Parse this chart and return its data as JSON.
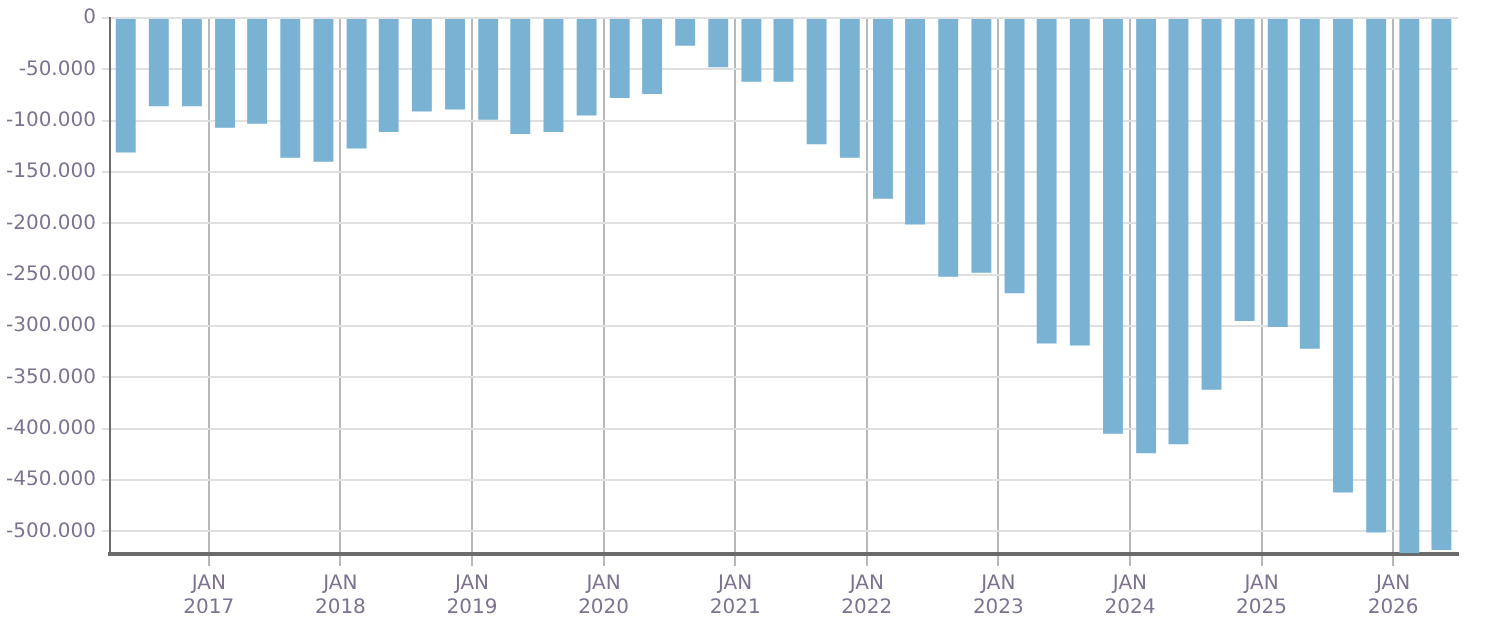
{
  "chart_data": {
    "type": "bar",
    "x": [
      "2016-05-15",
      "2016-08-15",
      "2016-11-15",
      "2017-02-15",
      "2017-05-15",
      "2017-08-15",
      "2017-11-15",
      "2018-02-15",
      "2018-05-15",
      "2018-08-15",
      "2018-11-15",
      "2019-02-15",
      "2019-05-15",
      "2019-08-15",
      "2019-11-15",
      "2020-02-15",
      "2020-05-15",
      "2020-08-15",
      "2020-11-15",
      "2021-02-15",
      "2021-05-15",
      "2021-08-15",
      "2021-11-15",
      "2022-02-15",
      "2022-05-15",
      "2022-08-15",
      "2022-11-15",
      "2023-02-15",
      "2023-05-15",
      "2023-08-15",
      "2023-11-15",
      "2024-02-15",
      "2024-05-15",
      "2024-08-15",
      "2024-11-15",
      "2025-02-15",
      "2025-05-15",
      "2025-08-15",
      "2025-11-15",
      "2026-02-15",
      "2026-05-15"
    ],
    "values": [
      -131000,
      -86000,
      -86000,
      -107000,
      -103000,
      -136000,
      -140000,
      -127000,
      -111000,
      -91000,
      -89000,
      -99000,
      -113000,
      -111000,
      -95000,
      -78000,
      -74000,
      -27000,
      -48000,
      -62000,
      -62000,
      -123000,
      -136000,
      -176000,
      -201000,
      -252000,
      -248000,
      -268000,
      -317000,
      -319000,
      -405000,
      -424000,
      -415000,
      -362000,
      -295000,
      -301000,
      -322000,
      -462000,
      -501000,
      -521000,
      -518000
    ],
    "color": "#7ab2d4",
    "xlim": [
      "2016-04-01",
      "2026-06-30"
    ],
    "xticks": [
      {
        "value": "2017-01-01",
        "label": "JAN 2017"
      },
      {
        "value": "2018-01-01",
        "label": "JAN 2018"
      },
      {
        "value": "2019-01-01",
        "label": "JAN 2019"
      },
      {
        "value": "2020-01-01",
        "label": "JAN 2020"
      },
      {
        "value": "2021-01-01",
        "label": "JAN 2021"
      },
      {
        "value": "2022-01-01",
        "label": "JAN 2022"
      },
      {
        "value": "2023-01-01",
        "label": "JAN 2023"
      },
      {
        "value": "2024-01-01",
        "label": "JAN 2024"
      },
      {
        "value": "2025-01-01",
        "label": "JAN 2025"
      },
      {
        "value": "2026-01-01",
        "label": "JAN 2026"
      }
    ],
    "ylim": [
      -522000,
      0
    ],
    "yticks": [
      0,
      {
        "value": -50000,
        "label": "-50.000"
      },
      {
        "value": -100000,
        "label": "-100.000"
      },
      {
        "value": -150000,
        "label": "-150.000"
      },
      {
        "value": -200000,
        "label": "-200.000"
      },
      {
        "value": -250000,
        "label": "-250.000"
      },
      {
        "value": -300000,
        "label": "-300.000"
      },
      {
        "value": -350000,
        "label": "-350.000"
      },
      {
        "value": -400000,
        "label": "-400.000"
      },
      {
        "value": -450000,
        "label": "-450.000"
      },
      {
        "value": -500000,
        "label": "-500.000"
      }
    ],
    "grid": true
  }
}
